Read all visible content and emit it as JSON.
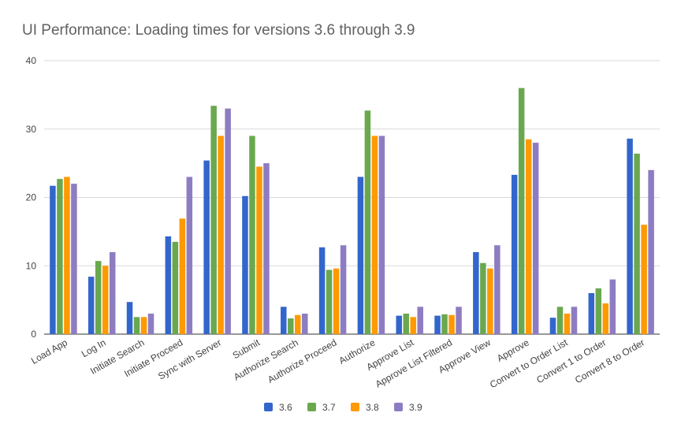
{
  "chart_data": {
    "type": "bar",
    "title": "UI Performance: Loading times for versions 3.6 through 3.9",
    "xlabel": "",
    "ylabel": "",
    "ylim": [
      0,
      40
    ],
    "yticks": [
      "0",
      "10",
      "20",
      "30",
      "40"
    ],
    "grid": true,
    "legend_position": "bottom",
    "categories": [
      "Load App",
      "Log In",
      "Initiate Search",
      "Initiate Proceed",
      "Sync with Server",
      "Submit",
      "Authorize Search",
      "Authorize Proceed",
      "Authorize",
      "Approve List",
      "Approve List Filtered",
      "Approve View",
      "Approve",
      "Convert to Order List",
      "Convert 1 to Order",
      "Convert 8 to Order"
    ],
    "series": [
      {
        "name": "3.6",
        "color": "#3366cc",
        "values": [
          21.7,
          8.4,
          4.7,
          14.3,
          25.4,
          20.2,
          4.0,
          12.7,
          23.0,
          2.7,
          2.7,
          12.0,
          23.3,
          2.4,
          6.0,
          28.6
        ]
      },
      {
        "name": "3.7",
        "color": "#6aa84f",
        "values": [
          22.7,
          10.7,
          2.5,
          13.5,
          33.4,
          29.0,
          2.3,
          9.4,
          32.7,
          3.0,
          2.9,
          10.4,
          36.0,
          4.0,
          6.7,
          26.4
        ]
      },
      {
        "name": "3.8",
        "color": "#ff9900",
        "values": [
          23.0,
          10.0,
          2.5,
          16.9,
          29.0,
          24.5,
          2.8,
          9.6,
          29.0,
          2.5,
          2.8,
          9.6,
          28.5,
          3.0,
          4.5,
          16.0
        ]
      },
      {
        "name": "3.9",
        "color": "#8e7cc3",
        "values": [
          22.0,
          12.0,
          3.0,
          23.0,
          33.0,
          25.0,
          3.0,
          13.0,
          29.0,
          4.0,
          4.0,
          13.0,
          28.0,
          4.0,
          8.0,
          24.0
        ]
      }
    ]
  }
}
